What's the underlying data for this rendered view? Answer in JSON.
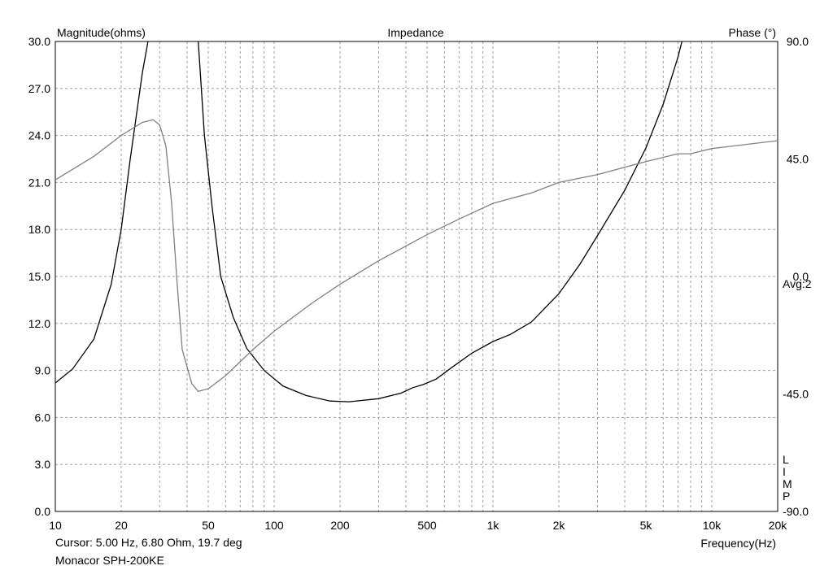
{
  "chart_data": {
    "type": "line",
    "title": "Impedance",
    "ylabel_left": "Magnitude(ohms)",
    "ylabel_right": "Phase (°)",
    "xlabel": "Frequency(Hz)",
    "x_scale": "log",
    "xlim": [
      10,
      20000
    ],
    "ylim_left": [
      0,
      30
    ],
    "ylim_right": [
      -90,
      90
    ],
    "grid": true,
    "x_ticks": [
      10,
      20,
      50,
      100,
      200,
      500,
      1000,
      2000,
      5000,
      10000,
      20000
    ],
    "x_tick_labels": [
      "10",
      "20",
      "50",
      "100",
      "200",
      "500",
      "1k",
      "2k",
      "5k",
      "10k",
      "20k"
    ],
    "y_ticks_left": [
      "0.0",
      "3.0",
      "6.0",
      "9.0",
      "12.0",
      "15.0",
      "18.0",
      "21.0",
      "24.0",
      "27.0",
      "30.0"
    ],
    "y_ticks_right": [
      {
        "value": 90,
        "label": "90.0"
      },
      {
        "value": 45,
        "label": "45.0"
      },
      {
        "value": 0,
        "label": "0.0"
      },
      {
        "value": -45,
        "label": "-45.0"
      },
      {
        "value": -90,
        "label": "-90.0"
      }
    ],
    "side_labels": {
      "avg": "Avg:2",
      "mode": [
        "L",
        "I",
        "M",
        "P"
      ]
    },
    "series": [
      {
        "axis": "left",
        "color": "#000000",
        "values": [
          [
            10,
            8.2
          ],
          [
            12,
            9.1
          ],
          [
            15,
            11.0
          ],
          [
            18,
            14.5
          ],
          [
            20,
            18.0
          ],
          [
            22,
            22.5
          ],
          [
            25,
            28.0
          ],
          [
            26.5,
            30.0
          ]
        ],
        "values_b": [
          [
            45,
            30.0
          ],
          [
            48,
            24.0
          ],
          [
            52,
            19.5
          ],
          [
            57,
            15.0
          ],
          [
            65,
            12.4
          ],
          [
            75,
            10.4
          ],
          [
            90,
            9.0
          ],
          [
            110,
            8.0
          ],
          [
            140,
            7.4
          ],
          [
            180,
            7.05
          ],
          [
            220,
            7.0
          ],
          [
            300,
            7.2
          ],
          [
            380,
            7.55
          ],
          [
            430,
            7.9
          ],
          [
            480,
            8.1
          ],
          [
            550,
            8.45
          ],
          [
            650,
            9.2
          ],
          [
            800,
            10.1
          ],
          [
            1000,
            10.85
          ],
          [
            1200,
            11.3
          ],
          [
            1500,
            12.1
          ],
          [
            2000,
            13.9
          ],
          [
            2500,
            15.8
          ],
          [
            3000,
            17.6
          ],
          [
            4000,
            20.5
          ],
          [
            5000,
            23.2
          ],
          [
            6000,
            26.0
          ],
          [
            7000,
            29.0
          ],
          [
            7300,
            30.0
          ]
        ]
      },
      {
        "axis": "right",
        "color": "#808080",
        "values": [
          [
            10,
            37
          ],
          [
            15,
            46
          ],
          [
            20,
            54
          ],
          [
            25,
            59
          ],
          [
            28,
            60
          ],
          [
            30,
            58
          ],
          [
            32,
            50
          ],
          [
            34,
            28
          ],
          [
            36,
            -2
          ],
          [
            38,
            -28
          ],
          [
            42,
            -41
          ],
          [
            45,
            -44
          ],
          [
            50,
            -43
          ],
          [
            60,
            -38
          ],
          [
            80,
            -28
          ],
          [
            100,
            -21
          ],
          [
            150,
            -10
          ],
          [
            200,
            -3
          ],
          [
            300,
            6
          ],
          [
            500,
            16
          ],
          [
            700,
            22
          ],
          [
            1000,
            28
          ],
          [
            1500,
            32
          ],
          [
            2000,
            36
          ],
          [
            3000,
            39
          ],
          [
            5000,
            44
          ],
          [
            7000,
            47
          ],
          [
            8000,
            47
          ],
          [
            10000,
            49
          ],
          [
            20000,
            52
          ]
        ]
      }
    ],
    "cursor": "Cursor: 5.00 Hz, 6.80 Ohm, 19.7 deg",
    "device": "Monacor SPH-200KE"
  }
}
